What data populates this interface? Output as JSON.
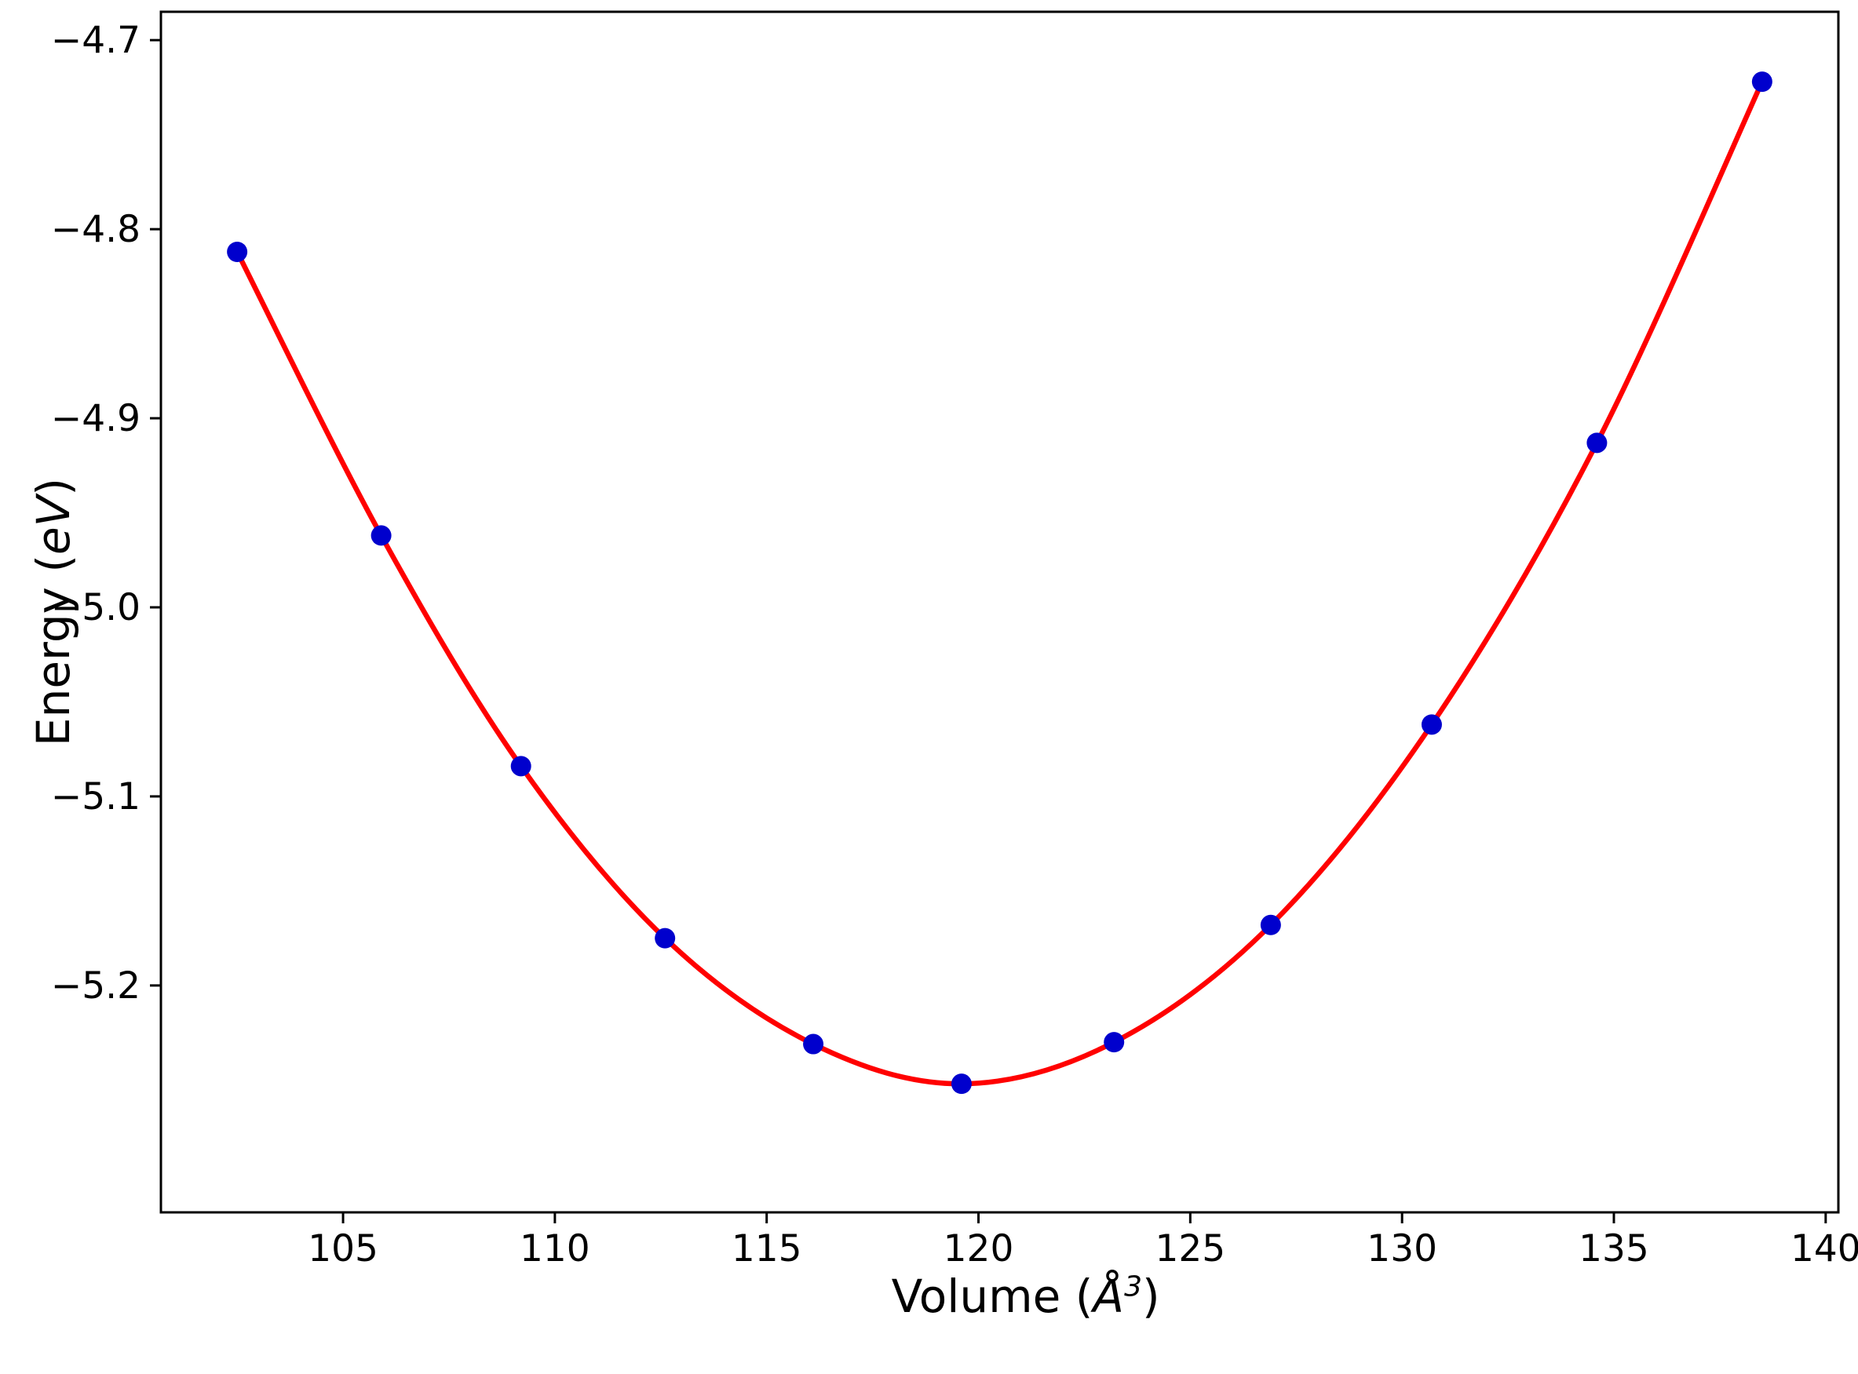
{
  "figure": {
    "background": "#ffffff"
  },
  "chart_data": {
    "type": "line",
    "title": "",
    "xlabel_parts": {
      "prefix": "Volume (",
      "unit": "Å",
      "sup": "3",
      "suffix": ")"
    },
    "ylabel_parts": {
      "prefix": "Energy (",
      "unit": "eV",
      "suffix": ")"
    },
    "x": [
      102.5,
      105.9,
      109.2,
      112.6,
      116.1,
      119.6,
      123.2,
      126.9,
      130.7,
      134.6,
      138.5
    ],
    "y": [
      -4.812,
      -4.962,
      -5.084,
      -5.175,
      -5.231,
      -5.252,
      -5.23,
      -5.168,
      -5.062,
      -4.913,
      -4.722
    ],
    "xlim": [
      100.7,
      140.3
    ],
    "ylim": [
      -5.32,
      -4.685
    ],
    "x_ticks": [
      105,
      110,
      115,
      120,
      125,
      130,
      135,
      140
    ],
    "y_ticks": [
      -4.7,
      -4.8,
      -4.9,
      -5.0,
      -5.1,
      -5.2
    ],
    "grid": false,
    "legend": null,
    "series": [
      {
        "name": "equation-of-state fit curve",
        "type": "curve",
        "color": "#ff0000"
      },
      {
        "name": "calculated energy points",
        "type": "scatter",
        "color": "#0000cd"
      }
    ],
    "curve_color": "#ff0000",
    "marker_color": "#0000cd",
    "axis_color": "#000000"
  }
}
